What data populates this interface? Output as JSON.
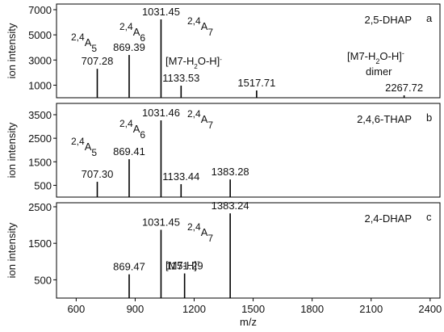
{
  "chart_data": [
    {
      "type": "stem",
      "title": "2,5-DHAP",
      "panel_label": "a",
      "ylabel": "ion intensity",
      "color": "#000000",
      "xlim": [
        500,
        2450
      ],
      "ylim": [
        0,
        7450
      ],
      "yticks": [
        1000,
        3000,
        5000,
        7000
      ],
      "x": [
        707.28,
        869.39,
        1031.45,
        1133.53,
        1517.71,
        2267.72
      ],
      "x_labels": [
        "707.28",
        "869.39",
        "1031.45",
        "1133.53",
        "1517.71",
        "2267.72"
      ],
      "values": [
        2300,
        3400,
        6230,
        960,
        580,
        190
      ],
      "annotations": [
        {
          "parts": [
            {
              "text": "2,4",
              "pos": "sup"
            },
            {
              "text": "A"
            },
            {
              "text": "5",
              "pos": "sub"
            }
          ]
        },
        {
          "parts": [
            {
              "text": "2,4",
              "pos": "sup"
            },
            {
              "text": "A"
            },
            {
              "text": "6",
              "pos": "sub"
            }
          ]
        },
        {
          "parts": [
            {
              "text": "2,4",
              "pos": "sup"
            },
            {
              "text": "A"
            },
            {
              "text": "7",
              "pos": "sub"
            }
          ]
        },
        {
          "parts": [
            {
              "text": "[M7-H"
            },
            {
              "text": "2",
              "pos": "sub"
            },
            {
              "text": "O-H]"
            },
            {
              "text": "-",
              "pos": "sup"
            }
          ]
        },
        {
          "parts": [
            {
              "text": "[M7-H"
            },
            {
              "text": "2",
              "pos": "sub"
            },
            {
              "text": "O-H]"
            },
            {
              "text": "-",
              "pos": "sup"
            }
          ]
        },
        {
          "parts": [
            {
              "text": "dimer"
            }
          ]
        }
      ]
    },
    {
      "type": "stem",
      "title": "2,4,6-THAP",
      "panel_label": "b",
      "ylabel": "ion intensity",
      "color": "#000000",
      "xlim": [
        500,
        2450
      ],
      "ylim": [
        0,
        3980
      ],
      "yticks": [
        500,
        1500,
        2500,
        3500
      ],
      "x": [
        707.3,
        869.41,
        1031.46,
        1133.44,
        1383.28
      ],
      "x_labels": [
        "707.30",
        "869.41",
        "1031.46",
        "1133.44",
        "1383.28"
      ],
      "values": [
        650,
        1610,
        3260,
        550,
        750
      ],
      "annotations": [
        {
          "parts": [
            {
              "text": "2,4",
              "pos": "sup"
            },
            {
              "text": "A"
            },
            {
              "text": "5",
              "pos": "sub"
            }
          ]
        },
        {
          "parts": [
            {
              "text": "2,4",
              "pos": "sup"
            },
            {
              "text": "A"
            },
            {
              "text": "6",
              "pos": "sub"
            }
          ]
        },
        {
          "parts": [
            {
              "text": "2,4",
              "pos": "sup"
            },
            {
              "text": "A"
            },
            {
              "text": "7",
              "pos": "sub"
            }
          ]
        }
      ]
    },
    {
      "type": "stem",
      "title": "2,4-DHAP",
      "panel_label": "c",
      "ylabel": "ion intensity",
      "xlabel": "m/z",
      "color": "#000000",
      "xlim": [
        500,
        2450
      ],
      "ylim": [
        0,
        2610
      ],
      "yticks": [
        500,
        1500,
        2500
      ],
      "xticks": [
        600,
        900,
        1200,
        1500,
        1800,
        2100,
        2400
      ],
      "x": [
        869.47,
        1031.45,
        1151.29,
        1383.24
      ],
      "x_labels": [
        "869.47",
        "1031.45",
        "1151.29",
        "1383.24"
      ],
      "values": [
        650,
        1870,
        675,
        2320
      ],
      "annotations": [
        {
          "parts": [
            {
              "text": "2,4",
              "pos": "sup"
            },
            {
              "text": "A"
            },
            {
              "text": "7",
              "pos": "sub"
            }
          ]
        },
        {
          "parts": [
            {
              "text": "[M7-H]"
            },
            {
              "text": "-",
              "pos": "sup"
            }
          ]
        }
      ]
    }
  ]
}
